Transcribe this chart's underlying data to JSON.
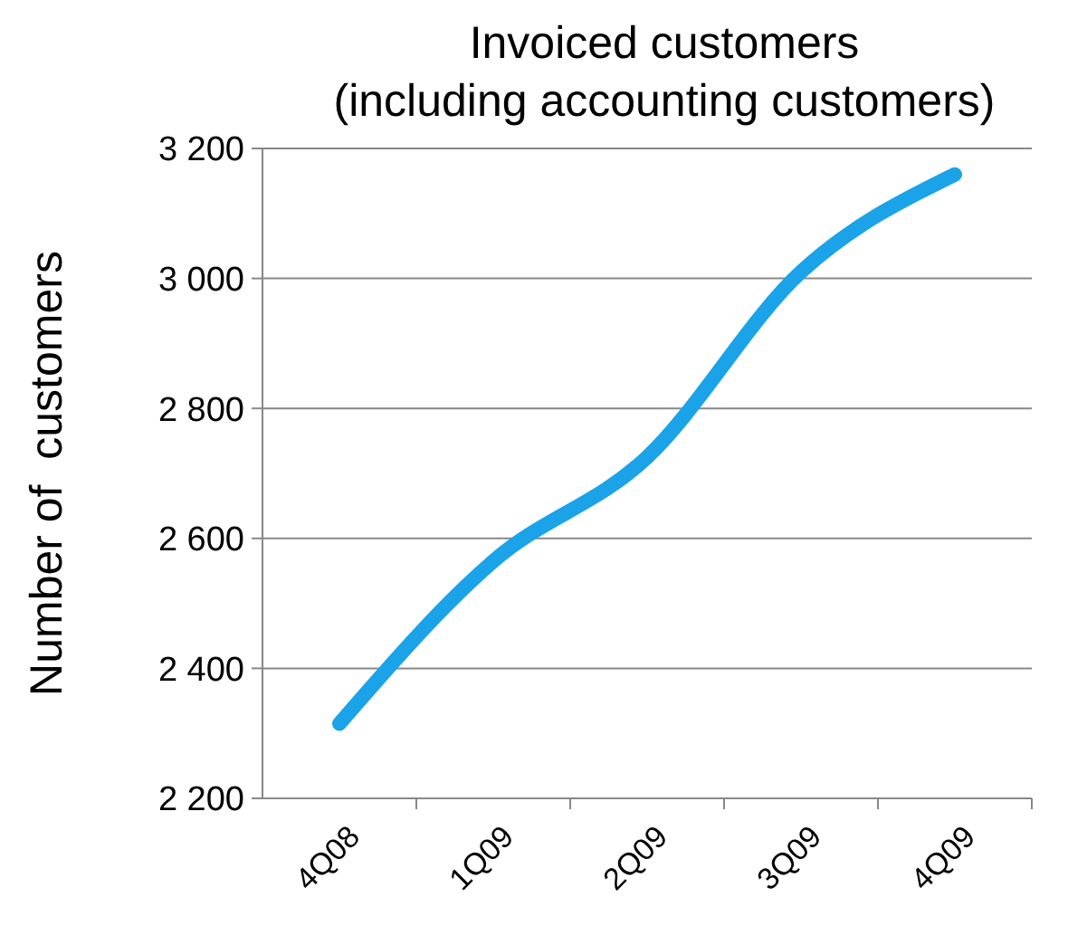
{
  "chart_data": {
    "type": "line",
    "title": "Invoiced customers",
    "subtitle": "(including accounting customers)",
    "ylabel": "Number of  customers",
    "categories": [
      "4Q08",
      "1Q09",
      "2Q09",
      "3Q09",
      "4Q09"
    ],
    "series": [
      {
        "color": "#1aa3e8",
        "values": [
          2315,
          2565,
          2725,
          3010,
          3160
        ]
      }
    ],
    "ylim": [
      2200,
      3200
    ],
    "yticks": [
      {
        "value": 2200,
        "label": "2 200"
      },
      {
        "value": 2400,
        "label": "2 400"
      },
      {
        "value": 2600,
        "label": "2 600"
      },
      {
        "value": 2800,
        "label": "2 800"
      },
      {
        "value": 3000,
        "label": "3 000"
      },
      {
        "value": 3200,
        "label": "3 200"
      }
    ],
    "grid": "y"
  }
}
